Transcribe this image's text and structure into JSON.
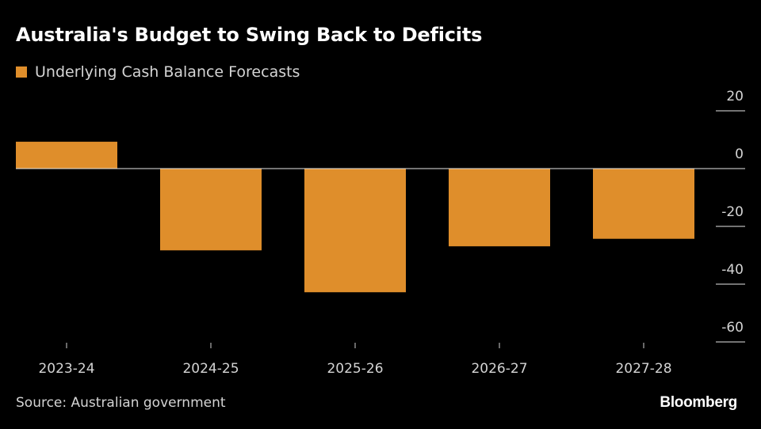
{
  "title": "Australia's Budget to Swing Back to Deficits",
  "source": "Source: Australian government",
  "brand": "Bloomberg",
  "colors": {
    "background": "#000000",
    "bar": "#df8e2b",
    "text": "#ffffff",
    "muted_text": "#d4d4d4",
    "tick": "#cfcfcf"
  },
  "chart_data": {
    "type": "bar",
    "title": "Australia's Budget to Swing Back to Deficits",
    "xlabel": "",
    "ylabel": "",
    "categories": [
      "2023-24",
      "2024-25",
      "2025-26",
      "2026-27",
      "2027-28"
    ],
    "series": [
      {
        "name": "Underlying Cash Balance Forecasts",
        "values": [
          9.3,
          -28.3,
          -42.8,
          -26.9,
          -24.3
        ]
      }
    ],
    "ylim": [
      -60,
      20
    ],
    "yticks": [
      20,
      0,
      -20,
      -40,
      -60
    ],
    "ytick_labels": [
      "20",
      "0",
      "-20",
      "-40",
      "-60"
    ],
    "y_axis_position": "right",
    "grid": false,
    "legend": "top-left"
  }
}
